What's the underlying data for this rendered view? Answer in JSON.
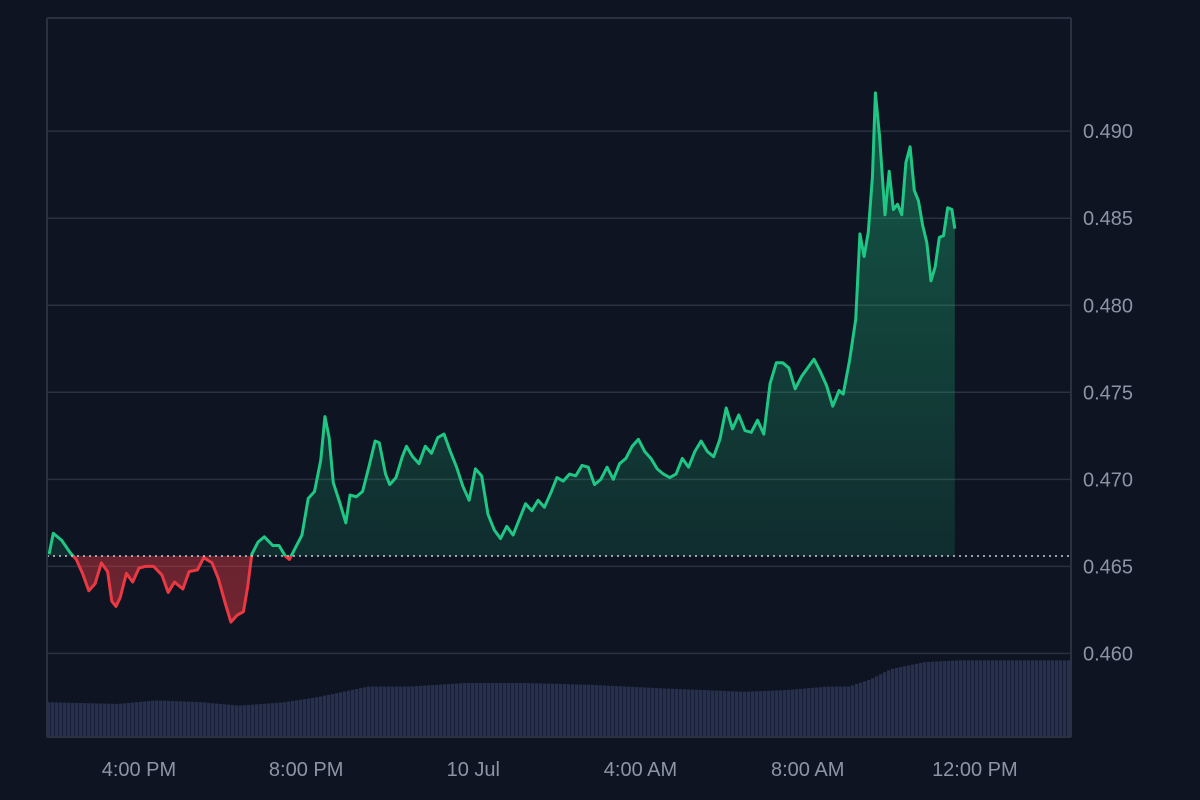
{
  "chart_data": {
    "type": "area",
    "baseline": 0.4656,
    "ylim": [
      0.4552,
      0.4965
    ],
    "y_ticks": [
      0.46,
      0.465,
      0.47,
      0.475,
      0.48,
      0.485,
      0.49
    ],
    "y_tick_labels": [
      "0.460",
      "0.465",
      "0.470",
      "0.475",
      "0.480",
      "0.485",
      "0.490"
    ],
    "x_ticks": [
      {
        "hours": 1.0,
        "label": "4:00 PM"
      },
      {
        "hours": 5.0,
        "label": "8:00 PM"
      },
      {
        "hours": 9.0,
        "label": "10 Jul"
      },
      {
        "hours": 13.0,
        "label": "4:00 AM"
      },
      {
        "hours": 17.0,
        "label": "8:00 AM"
      },
      {
        "hours": 21.0,
        "label": "12:00 PM"
      }
    ],
    "xlim_hours": [
      -1.2,
      23.3
    ],
    "grid": true,
    "colors": {
      "background": "#0e1421",
      "grid": "#2a3140",
      "axis_text": "#8c95a6",
      "up": "#1fc784",
      "down": "#ea3943",
      "volume": "#26304f"
    },
    "price": [
      [
        -1.15,
        0.4657
      ],
      [
        -1.05,
        0.4669
      ],
      [
        -0.85,
        0.4665
      ],
      [
        -0.65,
        0.4658
      ],
      [
        -0.5,
        0.4654
      ],
      [
        -0.35,
        0.4646
      ],
      [
        -0.2,
        0.4636
      ],
      [
        -0.05,
        0.464
      ],
      [
        0.1,
        0.4652
      ],
      [
        0.25,
        0.4647
      ],
      [
        0.35,
        0.463
      ],
      [
        0.45,
        0.4627
      ],
      [
        0.55,
        0.4632
      ],
      [
        0.7,
        0.4646
      ],
      [
        0.85,
        0.4641
      ],
      [
        1.0,
        0.4649
      ],
      [
        1.15,
        0.465
      ],
      [
        1.35,
        0.465
      ],
      [
        1.55,
        0.4645
      ],
      [
        1.7,
        0.4635
      ],
      [
        1.85,
        0.4641
      ],
      [
        2.05,
        0.4637
      ],
      [
        2.2,
        0.4647
      ],
      [
        2.4,
        0.4648
      ],
      [
        2.55,
        0.4655
      ],
      [
        2.75,
        0.4652
      ],
      [
        2.9,
        0.4643
      ],
      [
        3.05,
        0.463
      ],
      [
        3.2,
        0.4618
      ],
      [
        3.35,
        0.4622
      ],
      [
        3.5,
        0.4624
      ],
      [
        3.6,
        0.4638
      ],
      [
        3.7,
        0.4657
      ],
      [
        3.85,
        0.4664
      ],
      [
        4.0,
        0.4667
      ],
      [
        4.2,
        0.4662
      ],
      [
        4.35,
        0.4662
      ],
      [
        4.5,
        0.4656
      ],
      [
        4.6,
        0.4654
      ],
      [
        4.75,
        0.4661
      ],
      [
        4.9,
        0.4668
      ],
      [
        5.05,
        0.4689
      ],
      [
        5.2,
        0.4693
      ],
      [
        5.35,
        0.4711
      ],
      [
        5.45,
        0.4736
      ],
      [
        5.55,
        0.4724
      ],
      [
        5.65,
        0.4698
      ],
      [
        5.8,
        0.4687
      ],
      [
        5.95,
        0.4675
      ],
      [
        6.05,
        0.4691
      ],
      [
        6.2,
        0.469
      ],
      [
        6.35,
        0.4693
      ],
      [
        6.5,
        0.4707
      ],
      [
        6.65,
        0.4722
      ],
      [
        6.75,
        0.4721
      ],
      [
        6.9,
        0.4703
      ],
      [
        7.0,
        0.4697
      ],
      [
        7.15,
        0.4701
      ],
      [
        7.3,
        0.4713
      ],
      [
        7.4,
        0.4719
      ],
      [
        7.55,
        0.4713
      ],
      [
        7.7,
        0.4709
      ],
      [
        7.85,
        0.4719
      ],
      [
        8.0,
        0.4715
      ],
      [
        8.15,
        0.4724
      ],
      [
        8.3,
        0.4726
      ],
      [
        8.45,
        0.4716
      ],
      [
        8.6,
        0.4707
      ],
      [
        8.75,
        0.4696
      ],
      [
        8.9,
        0.4688
      ],
      [
        9.05,
        0.4706
      ],
      [
        9.2,
        0.4702
      ],
      [
        9.35,
        0.468
      ],
      [
        9.5,
        0.4671
      ],
      [
        9.65,
        0.4666
      ],
      [
        9.8,
        0.4673
      ],
      [
        9.95,
        0.4668
      ],
      [
        10.1,
        0.4677
      ],
      [
        10.25,
        0.4686
      ],
      [
        10.4,
        0.4682
      ],
      [
        10.55,
        0.4688
      ],
      [
        10.7,
        0.4684
      ],
      [
        10.85,
        0.4692
      ],
      [
        11.0,
        0.4701
      ],
      [
        11.15,
        0.4699
      ],
      [
        11.3,
        0.4703
      ],
      [
        11.45,
        0.4702
      ],
      [
        11.6,
        0.4708
      ],
      [
        11.75,
        0.4707
      ],
      [
        11.9,
        0.4697
      ],
      [
        12.05,
        0.47
      ],
      [
        12.2,
        0.4707
      ],
      [
        12.35,
        0.47
      ],
      [
        12.5,
        0.4709
      ],
      [
        12.65,
        0.4712
      ],
      [
        12.8,
        0.4719
      ],
      [
        12.95,
        0.4723
      ],
      [
        13.1,
        0.4716
      ],
      [
        13.25,
        0.4712
      ],
      [
        13.4,
        0.4706
      ],
      [
        13.55,
        0.4703
      ],
      [
        13.7,
        0.4701
      ],
      [
        13.85,
        0.4703
      ],
      [
        14.0,
        0.4712
      ],
      [
        14.15,
        0.4707
      ],
      [
        14.3,
        0.4716
      ],
      [
        14.45,
        0.4722
      ],
      [
        14.6,
        0.4716
      ],
      [
        14.75,
        0.4713
      ],
      [
        14.9,
        0.4723
      ],
      [
        15.05,
        0.4741
      ],
      [
        15.2,
        0.4729
      ],
      [
        15.35,
        0.4737
      ],
      [
        15.5,
        0.4728
      ],
      [
        15.65,
        0.4727
      ],
      [
        15.8,
        0.4734
      ],
      [
        15.95,
        0.4726
      ],
      [
        16.1,
        0.4755
      ],
      [
        16.25,
        0.4767
      ],
      [
        16.4,
        0.4767
      ],
      [
        16.55,
        0.4764
      ],
      [
        16.7,
        0.4752
      ],
      [
        16.85,
        0.4759
      ],
      [
        17.0,
        0.4764
      ],
      [
        17.15,
        0.4769
      ],
      [
        17.3,
        0.4762
      ],
      [
        17.45,
        0.4754
      ],
      [
        17.6,
        0.4742
      ],
      [
        17.75,
        0.4751
      ],
      [
        17.85,
        0.4749
      ],
      [
        18.0,
        0.4768
      ],
      [
        18.15,
        0.4792
      ],
      [
        18.25,
        0.4841
      ],
      [
        18.35,
        0.4828
      ],
      [
        18.45,
        0.4842
      ],
      [
        18.55,
        0.4874
      ],
      [
        18.62,
        0.4922
      ],
      [
        18.72,
        0.4897
      ],
      [
        18.85,
        0.4852
      ],
      [
        18.95,
        0.4877
      ],
      [
        19.05,
        0.4855
      ],
      [
        19.15,
        0.4858
      ],
      [
        19.25,
        0.4852
      ],
      [
        19.35,
        0.4882
      ],
      [
        19.45,
        0.4891
      ],
      [
        19.55,
        0.4866
      ],
      [
        19.65,
        0.486
      ],
      [
        19.75,
        0.4846
      ],
      [
        19.85,
        0.4836
      ],
      [
        19.95,
        0.4814
      ],
      [
        20.05,
        0.4822
      ],
      [
        20.15,
        0.4839
      ],
      [
        20.25,
        0.484
      ],
      [
        20.35,
        0.4856
      ],
      [
        20.45,
        0.4855
      ],
      [
        20.52,
        0.4844
      ]
    ],
    "volume_profile": [
      [
        -1.2,
        0.4572
      ],
      [
        0.5,
        0.4571
      ],
      [
        1.4,
        0.4573
      ],
      [
        2.5,
        0.4572
      ],
      [
        3.4,
        0.457
      ],
      [
        4.5,
        0.4572
      ],
      [
        5.3,
        0.4575
      ],
      [
        6.1,
        0.4579
      ],
      [
        6.5,
        0.4581
      ],
      [
        7.5,
        0.4581
      ],
      [
        8.8,
        0.4583
      ],
      [
        10.3,
        0.4583
      ],
      [
        11.8,
        0.4582
      ],
      [
        13.5,
        0.458
      ],
      [
        15.5,
        0.4578
      ],
      [
        16.5,
        0.4579
      ],
      [
        17.5,
        0.4581
      ],
      [
        18.0,
        0.4581
      ],
      [
        18.5,
        0.4585
      ],
      [
        19.0,
        0.4591
      ],
      [
        19.8,
        0.4595
      ],
      [
        20.6,
        0.4596
      ]
    ]
  }
}
